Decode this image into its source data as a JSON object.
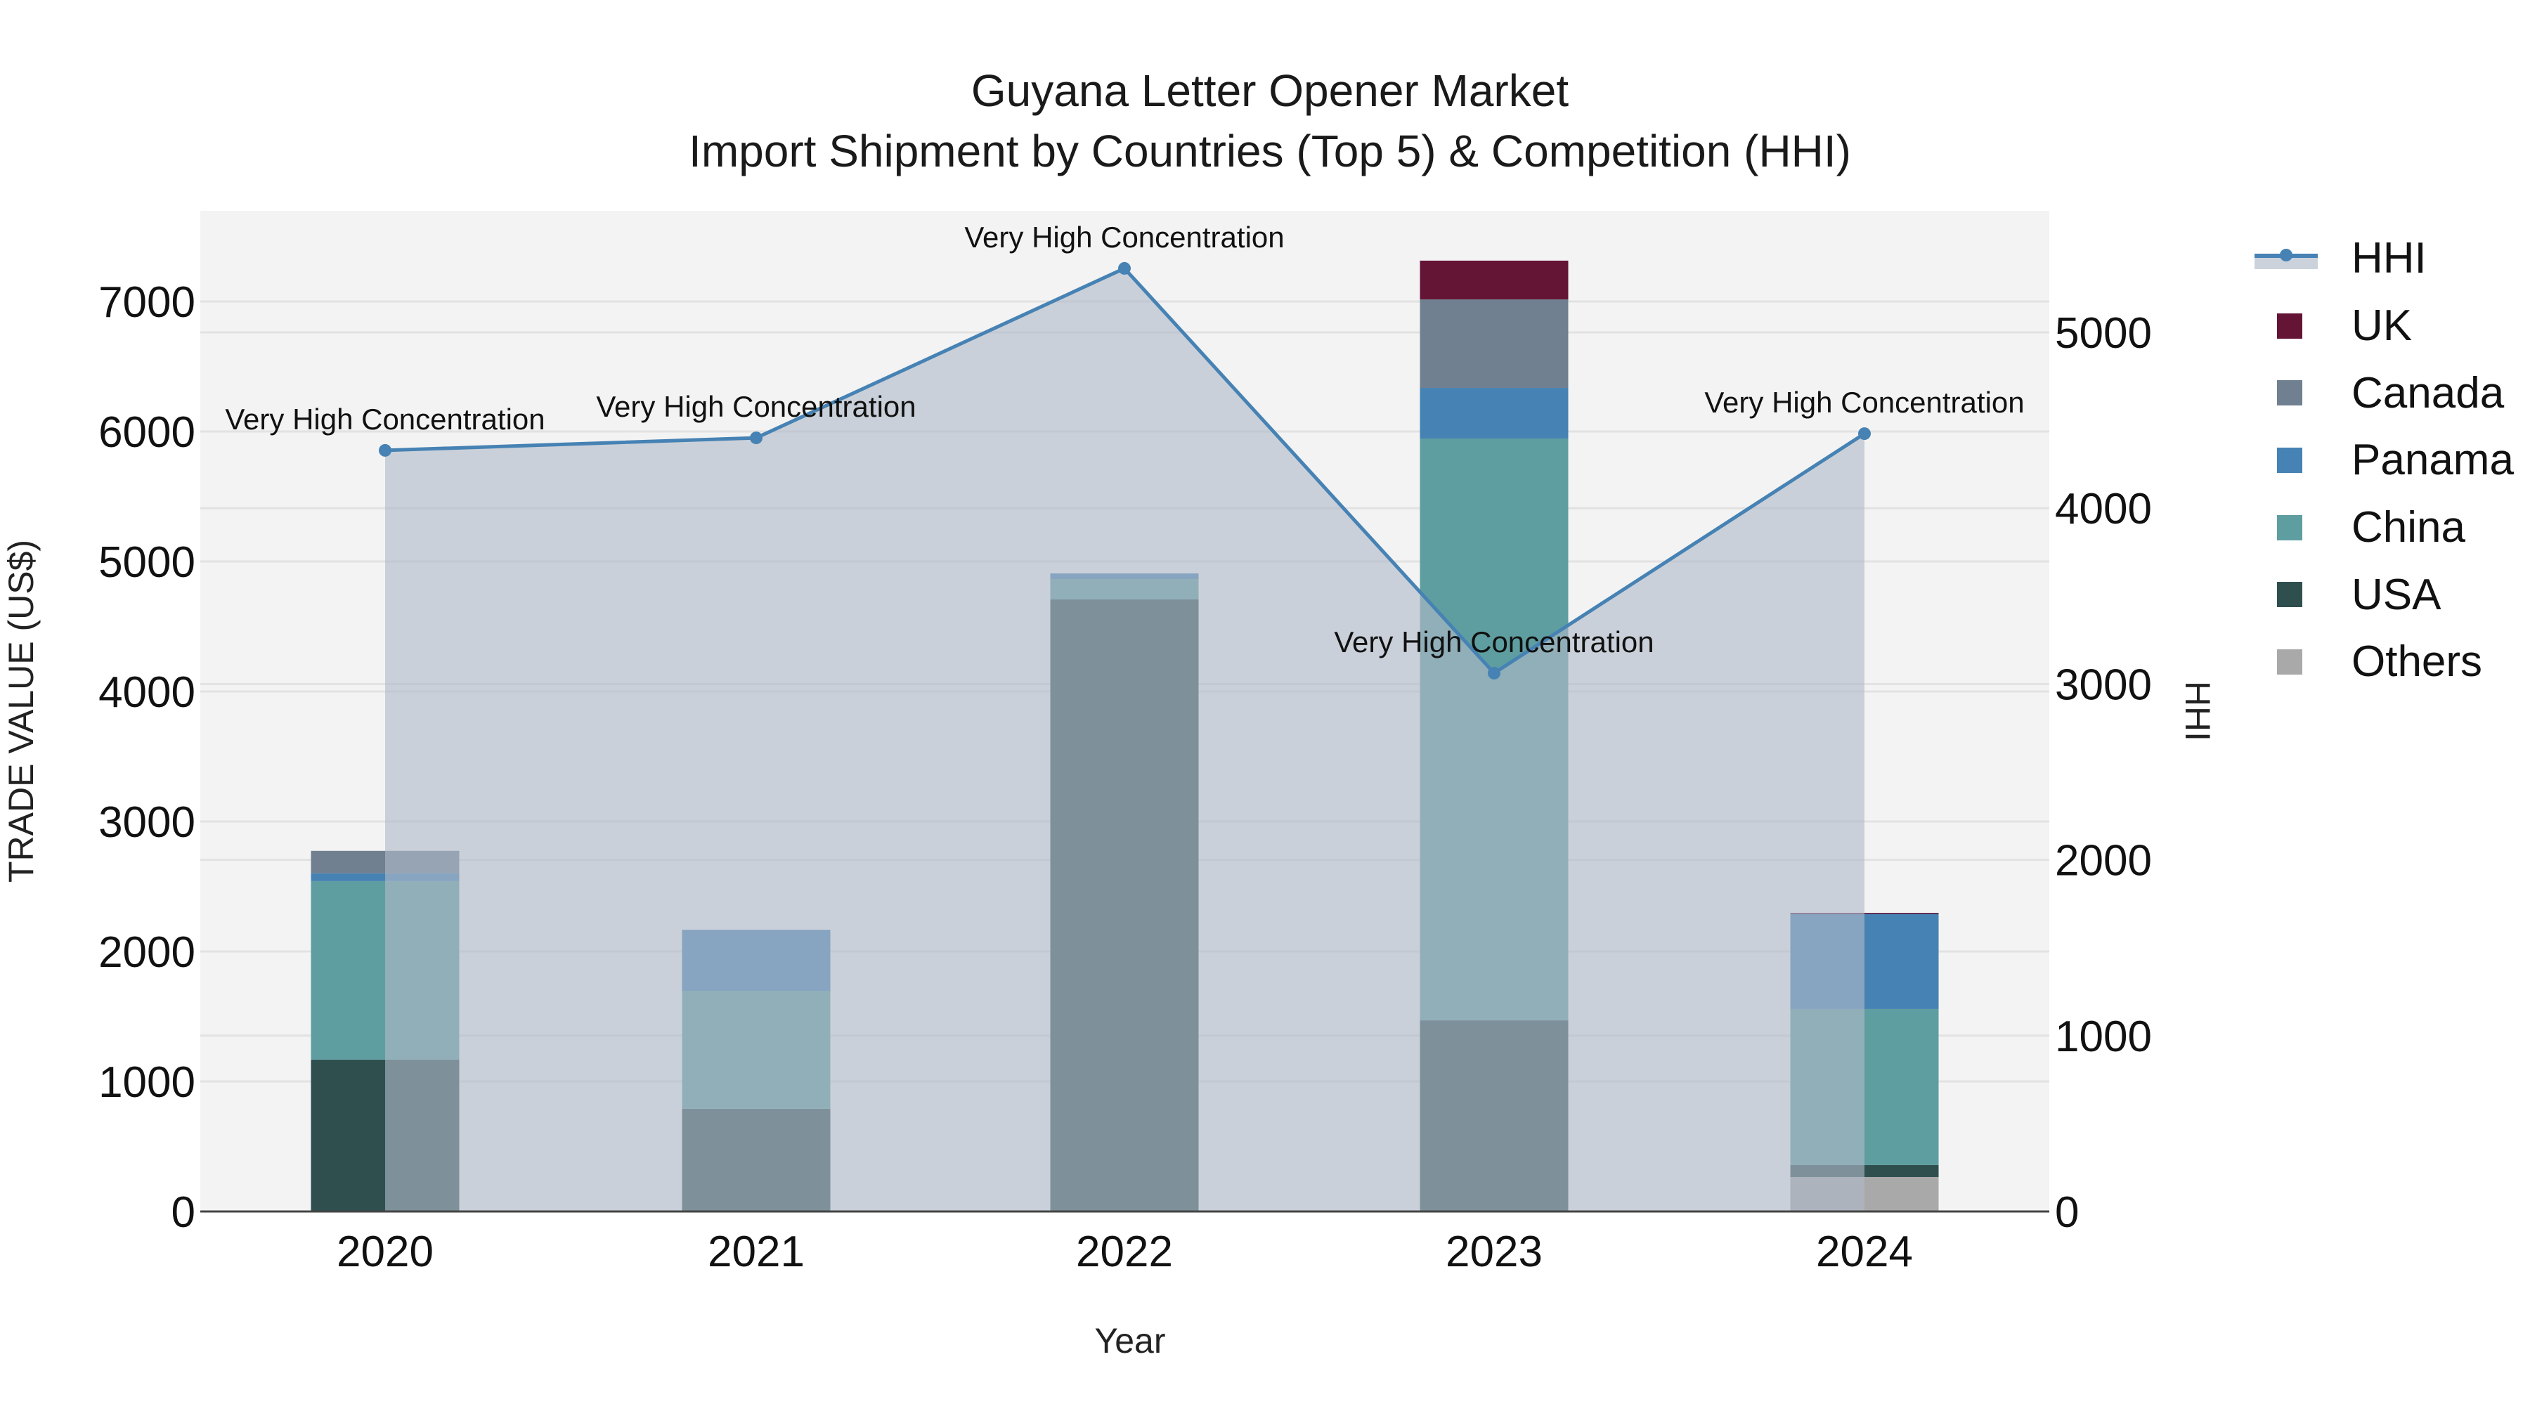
{
  "title": {
    "line1": "Guyana Letter Opener Market",
    "line2": "Import Shipment by Countries (Top 5) & Competition (HHI)"
  },
  "axes": {
    "x_title": "Year",
    "y_left_title": "TRADE VALUE (US$)",
    "y_right_title": "HHI",
    "y_left_ticks": [
      "0",
      "1000",
      "2000",
      "3000",
      "4000",
      "5000",
      "6000",
      "7000"
    ],
    "y_right_ticks": [
      "0",
      "1000",
      "2000",
      "3000",
      "4000",
      "5000"
    ],
    "x_ticks": [
      "2020",
      "2021",
      "2022",
      "2023",
      "2024"
    ]
  },
  "legend": {
    "items": [
      {
        "label": "HHI",
        "type": "line",
        "color": "#4682b4"
      },
      {
        "label": "UK",
        "type": "bar",
        "color": "#641435"
      },
      {
        "label": "Canada",
        "type": "bar",
        "color": "#708090"
      },
      {
        "label": "Panama",
        "type": "bar",
        "color": "#4682b4"
      },
      {
        "label": "China",
        "type": "bar",
        "color": "#5f9ea0"
      },
      {
        "label": "USA",
        "type": "bar",
        "color": "#2f4f4f"
      },
      {
        "label": "Others",
        "type": "bar",
        "color": "#a9a9a9"
      }
    ]
  },
  "colors": {
    "plot_bg": "#f3f3f3",
    "grid": "#e2e2e2",
    "hhi_line": "#4682b4",
    "hhi_fill": "rgba(176,186,200,0.62)"
  },
  "chart_data": {
    "type": "bar",
    "title": "Guyana Letter Opener Market — Import Shipment by Countries (Top 5) & Competition (HHI)",
    "xlabel": "Year",
    "ylabel": "TRADE VALUE (US$)",
    "y2label": "HHI",
    "categories": [
      "2020",
      "2021",
      "2022",
      "2023",
      "2024"
    ],
    "stacked": true,
    "ylim": [
      0,
      7650
    ],
    "y2lim": [
      0,
      5700
    ],
    "grid": true,
    "legend_position": "right",
    "series": [
      {
        "name": "Others",
        "type": "bar",
        "color": "#a9a9a9",
        "values": [
          0,
          0,
          0,
          0,
          265
        ]
      },
      {
        "name": "USA",
        "type": "bar",
        "color": "#2f4f4f",
        "values": [
          1168,
          790,
          4708,
          1470,
          92
        ]
      },
      {
        "name": "China",
        "type": "bar",
        "color": "#5f9ea0",
        "values": [
          1373,
          907,
          157,
          4476,
          1200
        ]
      },
      {
        "name": "Panama",
        "type": "bar",
        "color": "#4682b4",
        "values": [
          60,
          470,
          43,
          389,
          735
        ]
      },
      {
        "name": "Canada",
        "type": "bar",
        "color": "#708090",
        "values": [
          173,
          0,
          0,
          681,
          0
        ]
      },
      {
        "name": "UK",
        "type": "bar",
        "color": "#641435",
        "values": [
          0,
          0,
          0,
          298,
          5
        ]
      },
      {
        "name": "HHI",
        "type": "area-line",
        "axis": "right",
        "color": "#4682b4",
        "values": [
          4329,
          4400,
          5364,
          3062,
          4424
        ]
      }
    ],
    "annotations": [
      {
        "x": "2020",
        "text": "Very High Concentration"
      },
      {
        "x": "2021",
        "text": "Very High Concentration"
      },
      {
        "x": "2022",
        "text": "Very High Concentration"
      },
      {
        "x": "2023",
        "text": "Very High Concentration"
      },
      {
        "x": "2024",
        "text": "Very High Concentration"
      }
    ]
  }
}
